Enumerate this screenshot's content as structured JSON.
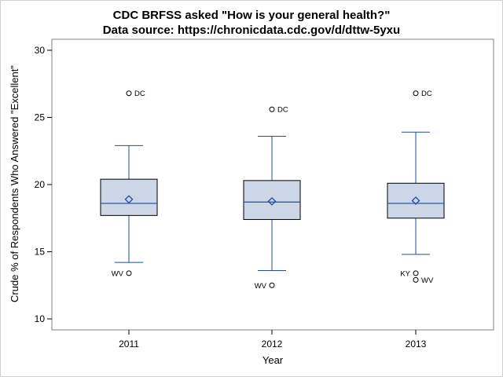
{
  "chart_data": {
    "type": "boxplot",
    "title": "CDC BRFSS asked \"How is your general health?\"",
    "subtitle": "Data source: https://chronicdata.cdc.gov/d/dttw-5yxu",
    "xlabel": "Year",
    "ylabel": "Crude % of Respondents Who Answered \"Excellent\"",
    "ylim": [
      10,
      30
    ],
    "yticks": [
      10,
      15,
      20,
      25,
      30
    ],
    "grid": false,
    "colors": {
      "box_fill": "#cdd6e6",
      "box_stroke": "#000000",
      "whisker": "#1f4e9e",
      "median": "#1f4e9e",
      "mean_marker": "#1f4e9e",
      "outlier": "#000000"
    },
    "categories": [
      "2011",
      "2012",
      "2013"
    ],
    "boxes": [
      {
        "category": "2011",
        "whisker_low": 14.2,
        "q1": 17.7,
        "median": 18.6,
        "mean": 18.9,
        "q3": 20.4,
        "whisker_high": 22.9,
        "outliers": [
          {
            "value": 26.8,
            "label": "DC",
            "side": "right"
          },
          {
            "value": 13.4,
            "label": "WV",
            "side": "left"
          }
        ]
      },
      {
        "category": "2012",
        "whisker_low": 13.6,
        "q1": 17.4,
        "median": 18.7,
        "mean": 18.75,
        "q3": 20.3,
        "whisker_high": 23.6,
        "outliers": [
          {
            "value": 25.6,
            "label": "DC",
            "side": "right"
          },
          {
            "value": 12.5,
            "label": "WV",
            "side": "left"
          }
        ]
      },
      {
        "category": "2013",
        "whisker_low": 14.8,
        "q1": 17.5,
        "median": 18.6,
        "mean": 18.8,
        "q3": 20.1,
        "whisker_high": 23.9,
        "outliers": [
          {
            "value": 26.8,
            "label": "DC",
            "side": "right"
          },
          {
            "value": 13.4,
            "label": "KY",
            "side": "left"
          },
          {
            "value": 12.9,
            "label": "WV",
            "side": "right"
          }
        ]
      }
    ]
  }
}
